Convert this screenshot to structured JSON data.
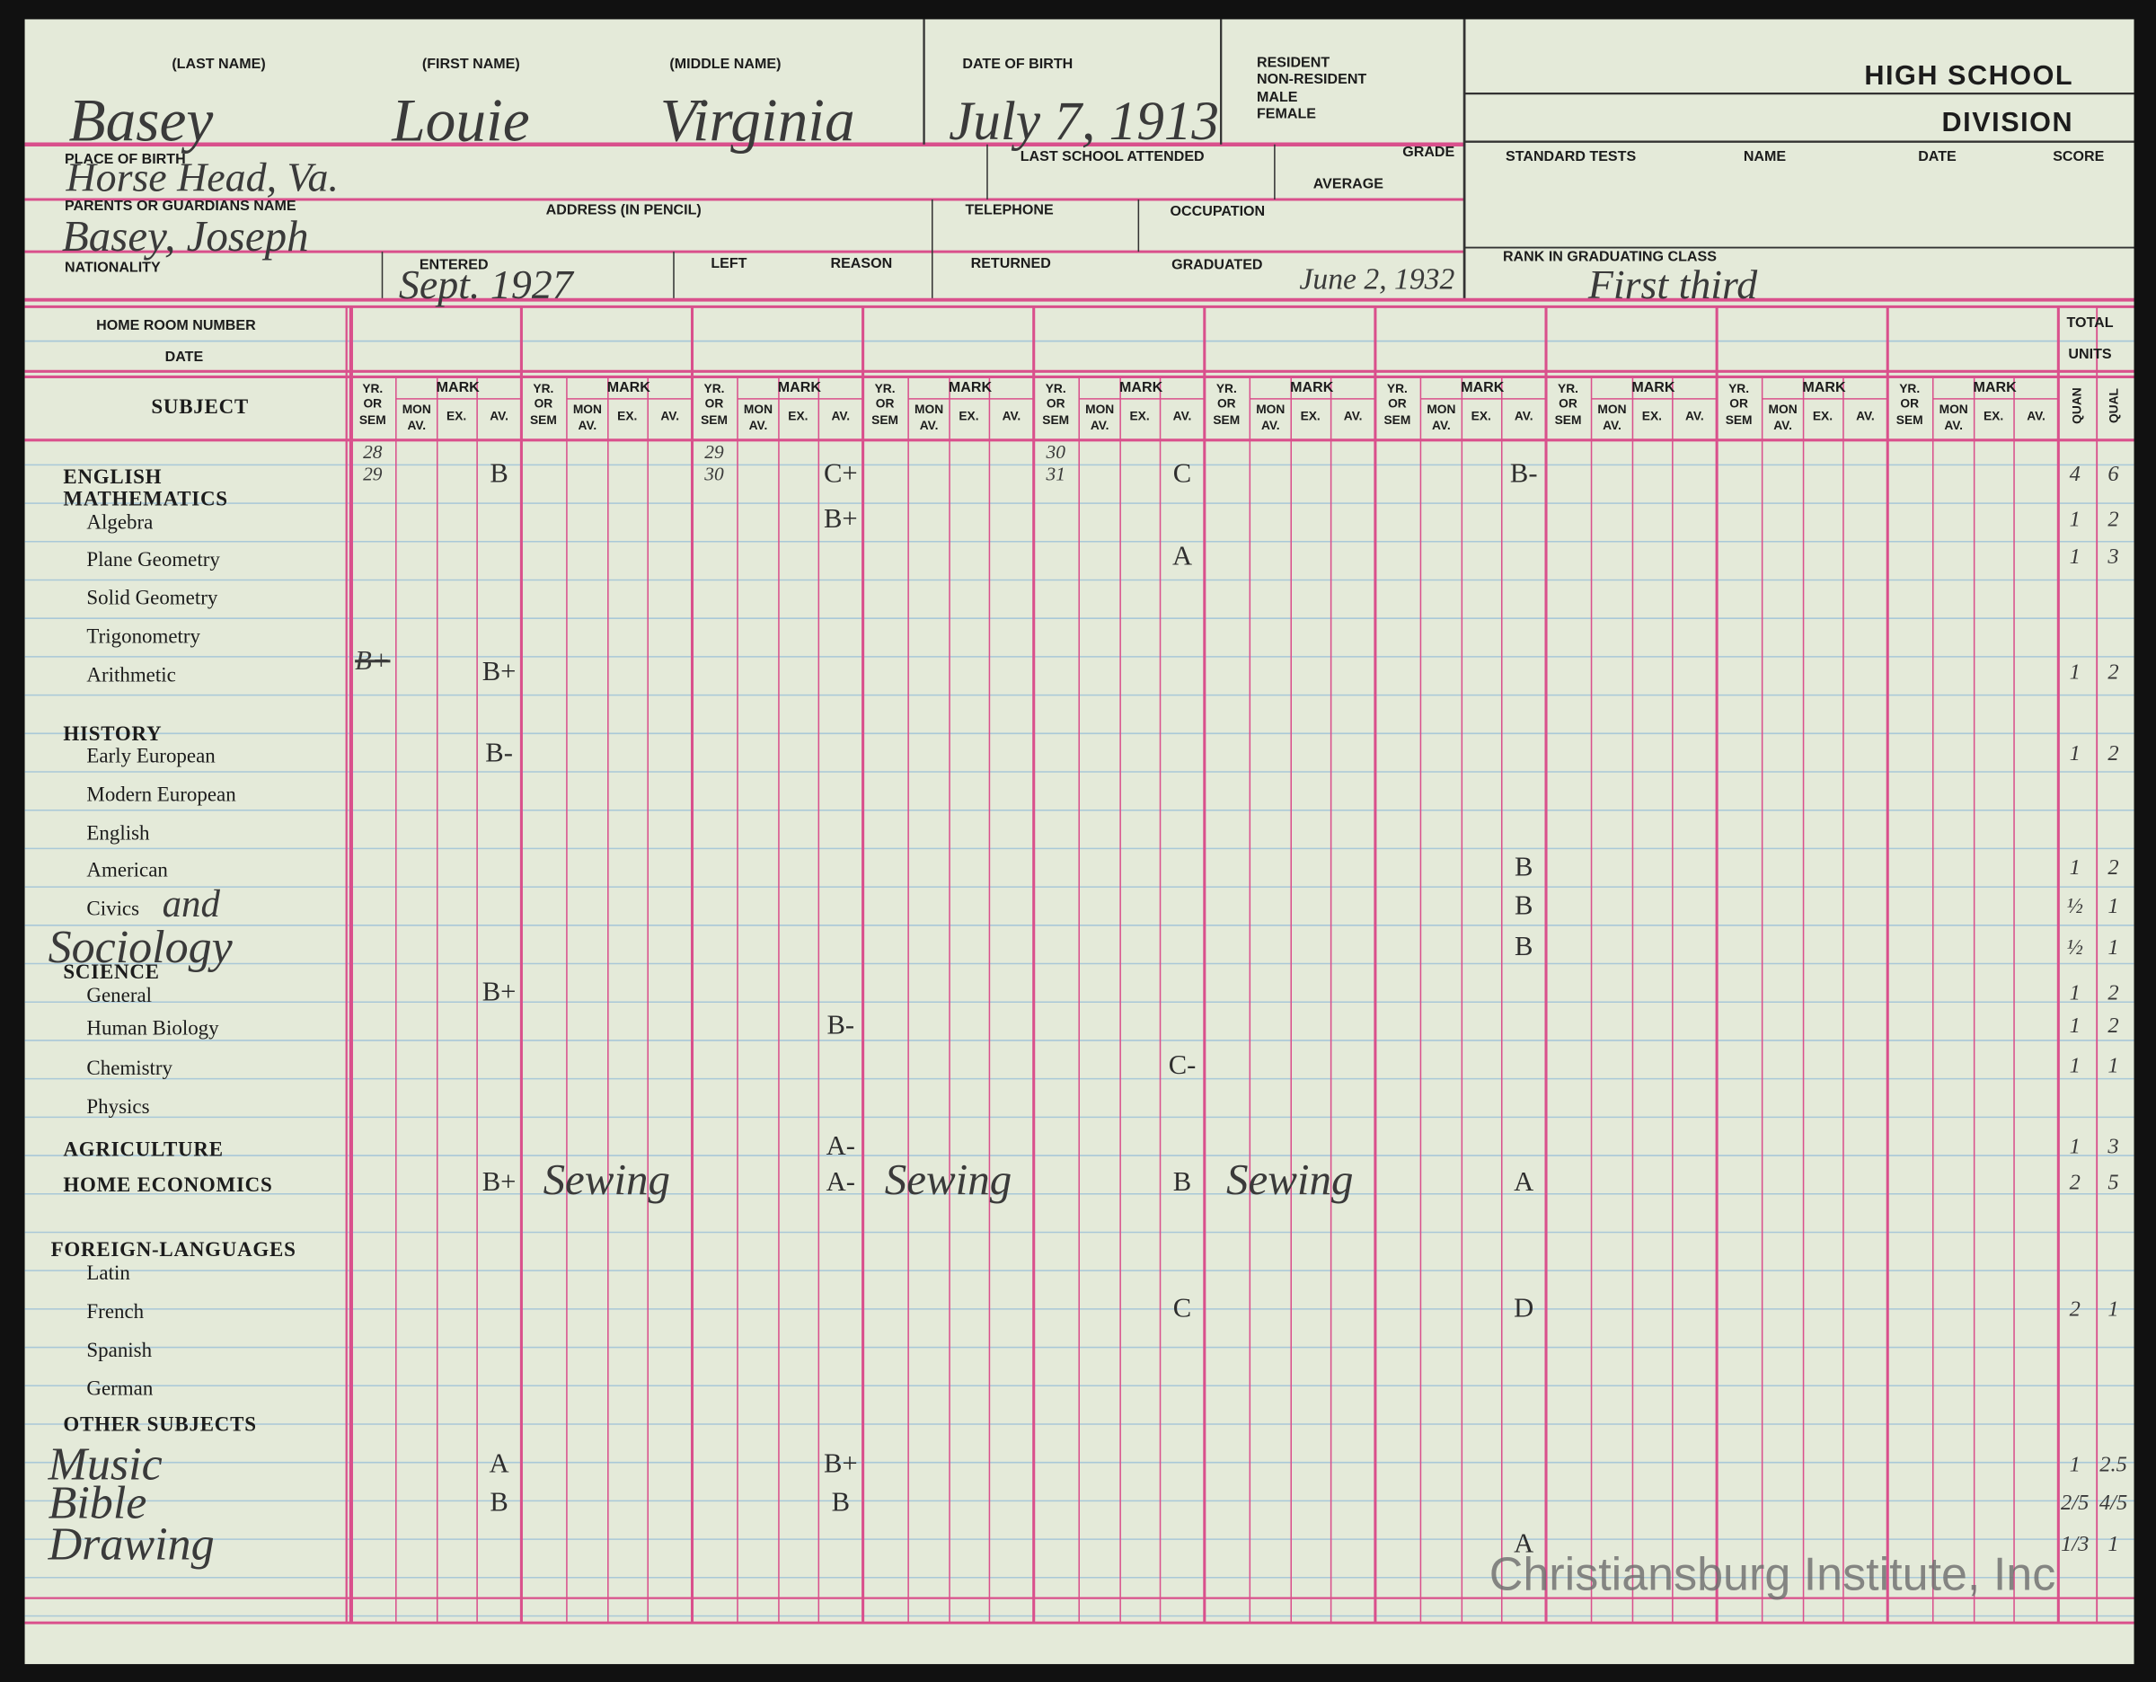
{
  "header": {
    "last_name_label": "(LAST NAME)",
    "first_name_label": "(FIRST NAME)",
    "middle_name_label": "(MIDDLE NAME)",
    "date_of_birth_label": "DATE OF BIRTH",
    "status_labels": [
      "RESIDENT",
      "NON-RESIDENT",
      "MALE",
      "FEMALE"
    ],
    "division": [
      "HIGH SCHOOL",
      "DIVISION"
    ],
    "place_of_birth_label": "PLACE OF BIRTH",
    "last_school_label": "LAST SCHOOL ATTENDED",
    "grade_label": "GRADE",
    "average_label": "AVERAGE",
    "standard_tests_labels": [
      "STANDARD TESTS",
      "NAME",
      "DATE",
      "SCORE"
    ],
    "parents_label": "PARENTS OR GUARDIANS NAME",
    "address_label": "ADDRESS (IN PENCIL)",
    "telephone_label": "TELEPHONE",
    "occupation_label": "OCCUPATION",
    "nationality_label": "NATIONALITY",
    "entered_label": "ENTERED",
    "left_label": "LEFT",
    "reason_label": "REASON",
    "returned_label": "RETURNED",
    "graduated_label": "GRADUATED",
    "rank_label": "RANK IN GRADUATING CLASS"
  },
  "entries": {
    "last_name": "Basey",
    "first_name": "Louie",
    "middle_name": "Virginia",
    "date_of_birth": "July 7, 1913",
    "place_of_birth": "Horse Head, Va.",
    "parent": "Basey, Joseph",
    "entered": "Sept. 1927",
    "graduated": "June 2, 1932",
    "rank": "First third"
  },
  "table": {
    "home_room_label": "HOME ROOM NUMBER",
    "date_label": "DATE",
    "subject_label": "SUBJECT",
    "total_label": "TOTAL",
    "units_label": "UNITS",
    "quan_label": "QUAN",
    "qual_label": "QUAL",
    "mark_label": "MARK",
    "yr_sem_label": [
      "YR.",
      "OR",
      "SEM"
    ],
    "mon_av_label": [
      "MON",
      "AV."
    ],
    "ex_label": "EX.",
    "av_label": "AV.",
    "rows": [
      {
        "subject": "ENGLISH",
        "yr_sem": [
          [
            "28",
            "29"
          ],
          null,
          [
            "29",
            "30"
          ],
          null,
          [
            "30",
            "31"
          ],
          null,
          null,
          null,
          null,
          null
        ],
        "marks": [
          "B",
          null,
          "C+",
          null,
          "C",
          null,
          "B-",
          null,
          null,
          null
        ],
        "quan": 4,
        "qual": 6
      },
      {
        "subject": "MATHEMATICS"
      },
      {
        "subject": "Algebra",
        "marks": [
          null,
          null,
          "B+",
          null,
          null,
          null,
          null,
          null,
          null,
          null
        ],
        "quan": 1,
        "qual": 2
      },
      {
        "subject": "Plane Geometry",
        "marks": [
          null,
          null,
          null,
          null,
          "A",
          null,
          null,
          null,
          null,
          null
        ],
        "quan": 1,
        "qual": 3
      },
      {
        "subject": "Solid Geometry"
      },
      {
        "subject": "Trigonometry"
      },
      {
        "subject": "Arithmetic",
        "yr_sem": [
          [
            "B+"
          ],
          null,
          null,
          null,
          null,
          null,
          null,
          null,
          null,
          null
        ],
        "marks": [
          "B+",
          null,
          null,
          null,
          null,
          null,
          null,
          null,
          null,
          null
        ],
        "quan": 1,
        "qual": 2
      },
      {
        "subject": "HISTORY"
      },
      {
        "subject": "Early European",
        "marks": [
          "B-",
          null,
          null,
          null,
          null,
          null,
          null,
          null,
          null,
          null
        ],
        "quan": 1,
        "qual": 2
      },
      {
        "subject": "Modern European"
      },
      {
        "subject": "English"
      },
      {
        "subject": "American",
        "marks": [
          null,
          null,
          null,
          null,
          null,
          null,
          "B",
          null,
          null,
          null
        ],
        "quan": 1,
        "qual": 2
      },
      {
        "subject": "Civics",
        "note": "and",
        "marks": [
          null,
          null,
          null,
          null,
          null,
          null,
          "B",
          null,
          null,
          null
        ],
        "quan": "½",
        "qual": 1
      },
      {
        "subject": "Sociology",
        "marks": [
          null,
          null,
          null,
          null,
          null,
          null,
          "B",
          null,
          null,
          null
        ],
        "quan": "½",
        "qual": 1
      },
      {
        "subject": "SCIENCE"
      },
      {
        "subject": "General",
        "marks": [
          "B+",
          null,
          null,
          null,
          null,
          null,
          null,
          null,
          null,
          null
        ],
        "quan": 1,
        "qual": 2
      },
      {
        "subject": "Human Biology",
        "marks": [
          null,
          null,
          "B-",
          null,
          null,
          null,
          null,
          null,
          null,
          null
        ],
        "quan": 1,
        "qual": 2
      },
      {
        "subject": "Chemistry",
        "marks": [
          null,
          null,
          null,
          null,
          "C-",
          null,
          null,
          null,
          null,
          null
        ],
        "quan": 1,
        "qual": 1
      },
      {
        "subject": "Physics"
      },
      {
        "subject": "AGRICULTURE",
        "marks": [
          null,
          null,
          "A-",
          null,
          null,
          null,
          null,
          null,
          null,
          null
        ],
        "quan": 1,
        "qual": 3
      },
      {
        "subject": "HOME ECONOMICS",
        "marks": [
          "B+",
          "Sewing",
          "A-",
          "Sewing",
          "B",
          "Sewing",
          "A",
          null,
          null,
          null
        ],
        "quan": 2,
        "qual": 5
      },
      {
        "subject": "FOREIGN-LANGUAGES"
      },
      {
        "subject": "Latin"
      },
      {
        "subject": "French",
        "marks": [
          null,
          null,
          null,
          null,
          "C",
          null,
          "D",
          null,
          null,
          null
        ],
        "quan": 2,
        "qual": 1
      },
      {
        "subject": "Spanish"
      },
      {
        "subject": "German"
      },
      {
        "subject": "OTHER SUBJECTS"
      },
      {
        "subject": "Music",
        "marks": [
          "A",
          null,
          "B+",
          null,
          null,
          null,
          null,
          null,
          null,
          null
        ],
        "quan": 1,
        "qual": 2.5
      },
      {
        "subject": "Bible",
        "marks": [
          "B",
          null,
          "B",
          null,
          null,
          null,
          null,
          null,
          null,
          null
        ],
        "quan": "2/5",
        "qual": "4/5"
      },
      {
        "subject": "Drawing",
        "marks": [
          null,
          null,
          null,
          null,
          null,
          null,
          "A",
          null,
          null,
          null
        ],
        "quan": "1/3",
        "qual": 1
      }
    ]
  },
  "watermark": "Christiansburg Institute, Inc"
}
